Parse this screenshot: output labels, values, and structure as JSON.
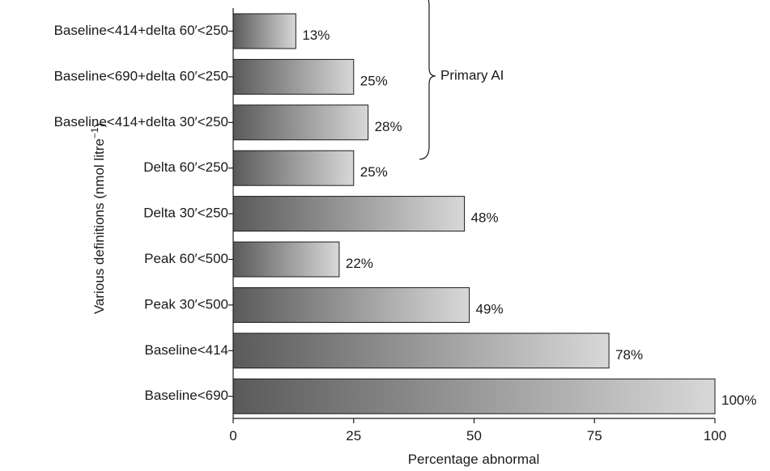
{
  "chart_data": {
    "type": "bar",
    "orientation": "horizontal",
    "categories": [
      "Baseline<414+delta 60′<250",
      "Baseline<690+delta 60′<250",
      "Baseline<414+delta 30′<250",
      "Delta 60′<250",
      "Delta 30′<250",
      "Peak 60′<500",
      "Peak 30′<500",
      "Baseline<414",
      "Baseline<690"
    ],
    "values": [
      13,
      25,
      28,
      25,
      48,
      22,
      49,
      78,
      100
    ],
    "value_labels": [
      "13%",
      "25%",
      "28%",
      "25%",
      "48%",
      "22%",
      "49%",
      "78%",
      "100%"
    ],
    "xlabel": "Percentage abnormal",
    "ylabel": "Various definitions (nmol litre",
    "ylabel_sup": "−1",
    "ylabel_close": ")",
    "xlim": [
      0,
      100
    ],
    "xticks": [
      0,
      25,
      50,
      75,
      100
    ],
    "xtick_labels": [
      "0",
      "25",
      "50",
      "75",
      "100"
    ],
    "grid": false,
    "annotation": {
      "label": "Primary AI",
      "spans_categories": [
        "Baseline<414+delta 60′<250",
        "Baseline<690+delta 60′<250",
        "Baseline<414+delta 30′<250"
      ]
    },
    "bar_gradient": [
      "#5a5a5a",
      "#d8d8d8"
    ]
  }
}
